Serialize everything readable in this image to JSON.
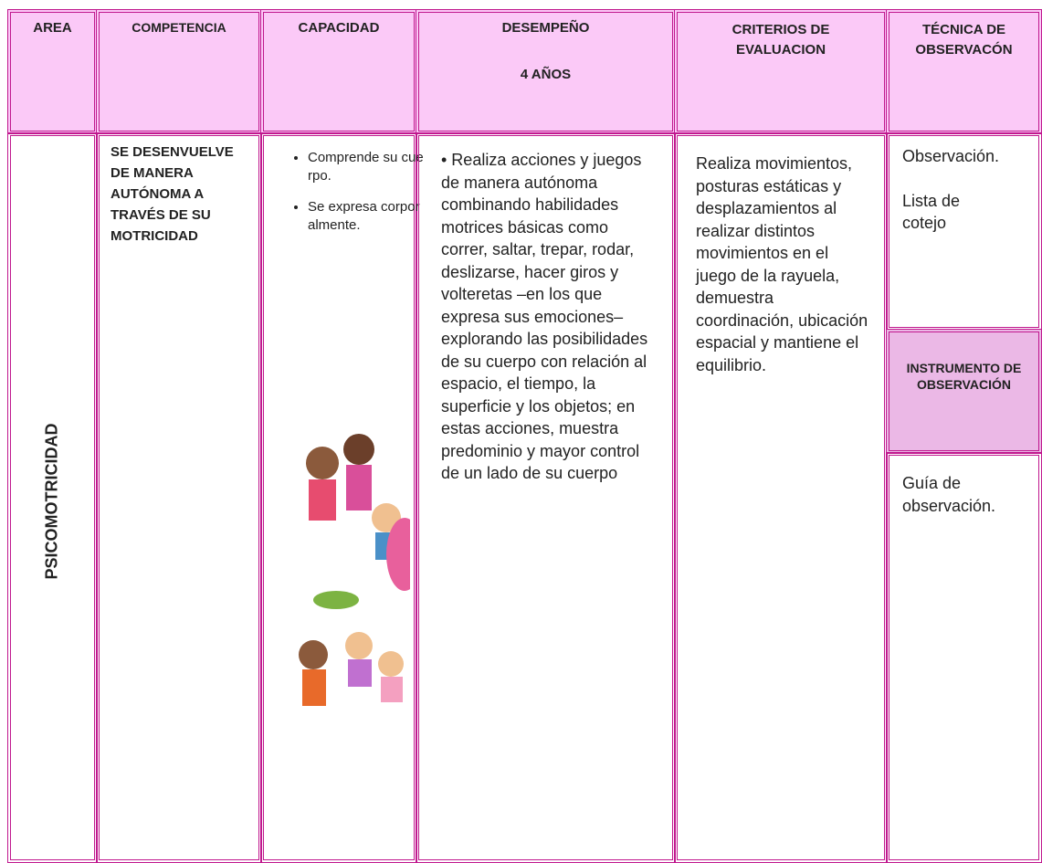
{
  "header": {
    "area": "AREA",
    "competencia": "COMPETENCIA",
    "capacidad": "CAPACIDAD",
    "desempeno": "DESEMPEÑO",
    "desempeno_age": "4 AÑOS",
    "criterios": "CRITERIOS DE EVALUACION",
    "tecnica": "TÉCNICA DE OBSERVACÓN"
  },
  "body": {
    "area": "PSICOMOTRICIDAD",
    "competencia": "SE DESENVUELVE DE MANERA AUTÓNOMA A TRAVÉS DE SU MOTRICIDAD",
    "capacidades": [
      "Comprende su cuerpo.",
      "Se expresa corporalmente."
    ],
    "desempeno": "• Realiza acciones y juegos de manera autónoma combinando habilidades motrices básicas como correr, saltar, trepar, rodar, deslizarse, hacer giros y volteretas –en los que expresa sus emociones– explorando las posibilidades de su cuerpo con relación al espacio, el tiempo, la superficie y los objetos; en estas acciones, muestra predominio y mayor control de un lado de su cuerpo",
    "criterios": "Realiza movimientos, posturas estáticas y desplazamientos al realizar distintos movimientos en el juego de la rayuela, demuestra coordinación, ubicación espacial y mantiene el equilibrio.",
    "tecnicas": [
      "Observación.",
      "Lista de cotejo"
    ],
    "instrumento_header": "INSTRUMENTO DE OBSERVACIÓN",
    "instrumento": "Guía de observación."
  }
}
